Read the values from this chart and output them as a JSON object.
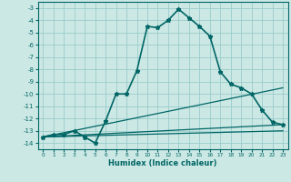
{
  "title": "",
  "xlabel": "Humidex (Indice chaleur)",
  "bg_color": "#cce8e4",
  "grid_color": "#99cccc",
  "line_color": "#006666",
  "xlim": [
    -0.5,
    23.5
  ],
  "ylim": [
    -14.5,
    -2.5
  ],
  "yticks": [
    -14,
    -13,
    -12,
    -11,
    -10,
    -9,
    -8,
    -7,
    -6,
    -5,
    -4,
    -3
  ],
  "xticks": [
    0,
    1,
    2,
    3,
    4,
    5,
    6,
    7,
    8,
    9,
    10,
    11,
    12,
    13,
    14,
    15,
    16,
    17,
    18,
    19,
    20,
    21,
    22,
    23
  ],
  "series": [
    {
      "x": [
        0,
        1,
        2,
        3,
        4,
        5,
        6,
        7,
        8,
        9,
        10,
        11,
        12,
        13,
        14,
        15,
        16,
        17,
        18,
        19,
        20,
        21,
        22,
        23
      ],
      "y": [
        -13.5,
        -13.3,
        -13.3,
        -13.0,
        -13.5,
        -14.0,
        -12.2,
        -10.0,
        -10.0,
        -8.1,
        -4.5,
        -4.6,
        -4.0,
        -3.1,
        -3.8,
        -4.5,
        -5.3,
        -8.2,
        -9.2,
        -9.5,
        -10.0,
        -11.3,
        -12.3,
        -12.5
      ],
      "marker": "*",
      "markersize": 3.5,
      "linewidth": 1.2,
      "linestyle": "-"
    },
    {
      "x": [
        0,
        23
      ],
      "y": [
        -13.5,
        -12.5
      ],
      "marker": null,
      "linewidth": 0.9,
      "linestyle": "-"
    },
    {
      "x": [
        0,
        23
      ],
      "y": [
        -13.5,
        -13.0
      ],
      "marker": null,
      "linewidth": 0.9,
      "linestyle": "-"
    },
    {
      "x": [
        0,
        23
      ],
      "y": [
        -13.5,
        -9.5
      ],
      "marker": null,
      "linewidth": 0.9,
      "linestyle": "-"
    }
  ]
}
